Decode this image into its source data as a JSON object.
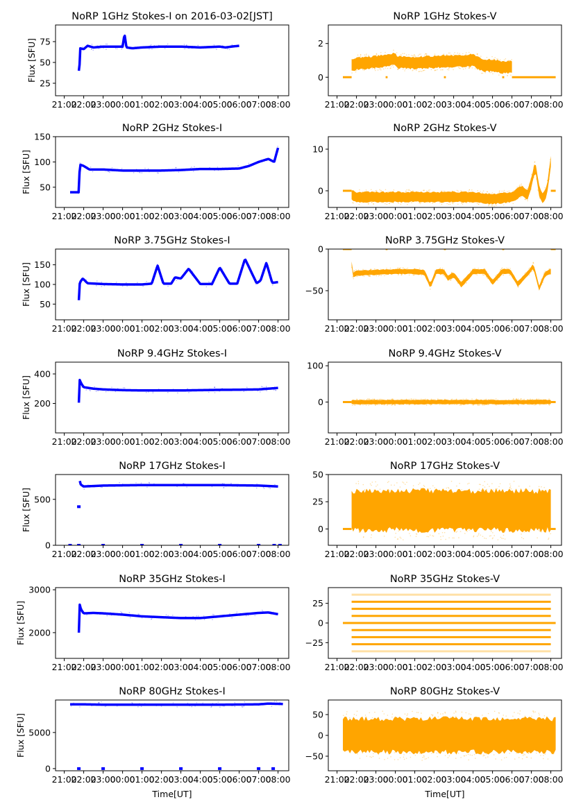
{
  "figure": {
    "xlabel": "Time[UT]",
    "ylabel": "Flux [SFU]",
    "colors": {
      "stokes_i": "#0000ff",
      "stokes_v": "#ffa500"
    }
  },
  "chart_data": [
    {
      "type": "scatter",
      "title": "NoRP 1GHz Stokes-I on 2016-03-02[JST]",
      "ylabel": "Flux [SFU]",
      "xlabel": "",
      "x_ticks": [
        "21:00",
        "22:00",
        "23:00",
        "00:00",
        "01:00",
        "02:00",
        "03:00",
        "04:00",
        "05:00",
        "06:00",
        "07:00",
        "08:00"
      ],
      "y_ticks": [
        25,
        50,
        75
      ],
      "ylim": [
        10,
        95
      ],
      "color": "#0000ff",
      "x_hours": [
        0.75,
        0.8,
        0.8,
        1.0,
        1.2,
        1.5,
        2.0,
        3.0,
        3.1,
        3.2,
        3.5,
        4,
        5,
        6,
        7,
        8,
        8.3,
        8.6,
        9.0
      ],
      "values": [
        40,
        50,
        67,
        66,
        70,
        68,
        69,
        69,
        84,
        68,
        67,
        68,
        69,
        69,
        68,
        69,
        68,
        69,
        70
      ]
    },
    {
      "type": "scatter",
      "title": "NoRP 1GHz Stokes-V",
      "ylabel": "",
      "xlabel": "",
      "x_ticks": [
        "21:00",
        "22:00",
        "23:00",
        "00:00",
        "01:00",
        "02:00",
        "03:00",
        "04:00",
        "05:00",
        "06:00",
        "07:00",
        "08:00"
      ],
      "y_ticks": [
        0,
        2
      ],
      "ylim": [
        -1.1,
        3.1
      ],
      "color": "#ffa500",
      "x_hours": [
        0.75,
        1.0,
        1.5,
        2.0,
        2.5,
        3.0,
        3.1,
        4.0,
        5.0,
        6.0,
        7.0,
        7.5,
        8.0,
        8.5,
        9.0
      ],
      "values": [
        0.7,
        0.8,
        0.85,
        0.9,
        1.0,
        1.1,
        0.9,
        0.85,
        0.9,
        0.95,
        1.0,
        0.7,
        0.7,
        0.6,
        0.6
      ],
      "spread": 0.35,
      "zero_segments": [
        [
          0.3,
          0.75
        ],
        [
          2.5,
          2.6
        ],
        [
          5.5,
          5.6
        ],
        [
          8.5,
          8.6
        ],
        [
          9.0,
          11.25
        ]
      ]
    },
    {
      "type": "scatter",
      "title": "NoRP 2GHz Stokes-I",
      "ylabel": "Flux [SFU]",
      "xlabel": "",
      "x_ticks": [
        "21:00",
        "22:00",
        "23:00",
        "00:00",
        "01:00",
        "02:00",
        "03:00",
        "04:00",
        "05:00",
        "06:00",
        "07:00",
        "08:00"
      ],
      "y_ticks": [
        50,
        100,
        150
      ],
      "ylim": [
        10,
        150
      ],
      "color": "#0000ff",
      "x_hours": [
        0.3,
        0.7,
        0.75,
        0.8,
        1.0,
        1.3,
        2,
        3,
        4,
        5,
        6,
        7,
        8,
        9,
        9.5,
        10.0,
        10.5,
        10.8,
        11.0
      ],
      "values": [
        40,
        40,
        40,
        95,
        92,
        85,
        85,
        83,
        83,
        83,
        84,
        86,
        86,
        87,
        92,
        100,
        106,
        100,
        128
      ]
    },
    {
      "type": "scatter",
      "title": "NoRP 2GHz Stokes-V",
      "ylabel": "",
      "xlabel": "",
      "x_ticks": [
        "21:00",
        "22:00",
        "23:00",
        "00:00",
        "01:00",
        "02:00",
        "03:00",
        "04:00",
        "05:00",
        "06:00",
        "07:00",
        "08:00"
      ],
      "y_ticks": [
        0,
        10
      ],
      "ylim": [
        -4,
        13
      ],
      "color": "#ffa500",
      "x_hours": [
        0.75,
        1,
        2,
        3,
        4,
        5,
        6,
        7,
        8,
        9,
        9.5,
        9.8,
        10.0,
        10.2,
        10.4,
        10.6,
        10.8,
        11.0
      ],
      "values": [
        -1,
        -1.5,
        -1.5,
        -1.5,
        -1.5,
        -1.5,
        -1.5,
        -1.5,
        -2,
        -1.5,
        0,
        -1,
        2,
        6,
        0,
        -2,
        0,
        7
      ],
      "spread": 1.2,
      "zero_segments": [
        [
          0.3,
          0.75
        ],
        [
          11.0,
          11.25
        ]
      ]
    },
    {
      "type": "scatter",
      "title": "NoRP 3.75GHz Stokes-I",
      "ylabel": "Flux [SFU]",
      "xlabel": "",
      "x_ticks": [
        "21:00",
        "22:00",
        "23:00",
        "00:00",
        "01:00",
        "02:00",
        "03:00",
        "04:00",
        "05:00",
        "06:00",
        "07:00",
        "08:00"
      ],
      "y_ticks": [
        50,
        100,
        150
      ],
      "ylim": [
        10,
        190
      ],
      "color": "#0000ff",
      "x_hours": [
        0.75,
        0.8,
        0.95,
        1.2,
        2,
        3,
        4,
        4.5,
        4.8,
        5.1,
        5.5,
        5.7,
        6.0,
        6.4,
        7.0,
        7.6,
        8.0,
        8.5,
        8.9,
        9.3,
        9.9,
        10.1,
        10.4,
        10.7,
        11.0
      ],
      "values": [
        60,
        105,
        115,
        103,
        101,
        100,
        100,
        102,
        148,
        102,
        102,
        118,
        115,
        140,
        101,
        101,
        143,
        102,
        102,
        165,
        103,
        110,
        155,
        104,
        106
      ]
    },
    {
      "type": "scatter",
      "title": "NoRP 3.75GHz Stokes-V",
      "ylabel": "",
      "xlabel": "",
      "x_ticks": [
        "21:00",
        "22:00",
        "23:00",
        "00:00",
        "01:00",
        "02:00",
        "03:00",
        "04:00",
        "05:00",
        "06:00",
        "07:00",
        "08:00"
      ],
      "y_ticks": [
        0,
        -50
      ],
      "ylim": [
        -85,
        0
      ],
      "color": "#ffa500",
      "x_hours": [
        0.75,
        0.8,
        0.95,
        2,
        3,
        4,
        4.5,
        4.8,
        5.1,
        5.5,
        5.7,
        6.0,
        6.4,
        7.0,
        7.6,
        8.0,
        8.5,
        8.9,
        9.3,
        9.9,
        10.1,
        10.4,
        10.7,
        11.0
      ],
      "values": [
        -18,
        -32,
        -29,
        -28,
        -27,
        -27,
        -28,
        -44,
        -27,
        -27,
        -35,
        -31,
        -43,
        -27,
        -27,
        -40,
        -27,
        -27,
        -42,
        -27,
        -20,
        -47,
        -30,
        -27
      ],
      "spread": 3,
      "zero_segments": [
        [
          0.3,
          0.75
        ],
        [
          2.5,
          2.6
        ],
        [
          5.5,
          5.6
        ],
        [
          8.5,
          8.6
        ],
        [
          11.0,
          11.25
        ]
      ]
    },
    {
      "type": "scatter",
      "title": "NoRP 9.4GHz Stokes-I",
      "ylabel": "Flux [SFU]",
      "xlabel": "",
      "x_ticks": [
        "21:00",
        "22:00",
        "23:00",
        "00:00",
        "01:00",
        "02:00",
        "03:00",
        "04:00",
        "05:00",
        "06:00",
        "07:00",
        "08:00"
      ],
      "y_ticks": [
        200,
        400
      ],
      "ylim": [
        0,
        480
      ],
      "color": "#0000ff",
      "x_hours": [
        0.75,
        0.8,
        0.85,
        1.0,
        1.5,
        2,
        3,
        4,
        5,
        6,
        7,
        8,
        9,
        10,
        10.5,
        11.0
      ],
      "values": [
        205,
        370,
        340,
        310,
        300,
        295,
        290,
        288,
        288,
        288,
        290,
        292,
        293,
        295,
        300,
        305
      ]
    },
    {
      "type": "scatter",
      "title": "NoRP 9.4GHz Stokes-V",
      "ylabel": "",
      "xlabel": "",
      "x_ticks": [
        "21:00",
        "22:00",
        "23:00",
        "00:00",
        "01:00",
        "02:00",
        "03:00",
        "04:00",
        "05:00",
        "06:00",
        "07:00",
        "08:00"
      ],
      "y_ticks": [
        0,
        100
      ],
      "ylim": [
        -85,
        110
      ],
      "color": "#ffa500",
      "x_hours": [
        0.75,
        11.0
      ],
      "values": [
        0,
        0
      ],
      "spread": 6,
      "zero_segments": [
        [
          0.3,
          0.75
        ],
        [
          11.0,
          11.25
        ]
      ]
    },
    {
      "type": "scatter",
      "title": "NoRP 17GHz Stokes-I",
      "ylabel": "Flux [SFU]",
      "xlabel": "",
      "x_ticks": [
        "21:00",
        "22:00",
        "23:00",
        "00:00",
        "01:00",
        "02:00",
        "03:00",
        "04:00",
        "05:00",
        "06:00",
        "07:00",
        "08:00"
      ],
      "y_ticks": [
        0,
        500
      ],
      "ylim": [
        0,
        770
      ],
      "color": "#0000ff",
      "x_hours": [
        0.8,
        0.85,
        1.0,
        2,
        4,
        6,
        8,
        10,
        11.0
      ],
      "values": [
        700,
        660,
        640,
        650,
        655,
        655,
        655,
        650,
        640
      ],
      "outliers": [
        [
          0.75,
          420
        ],
        [
          0.3,
          0
        ],
        [
          0.75,
          0
        ],
        [
          2,
          0
        ],
        [
          4,
          0
        ],
        [
          6,
          0
        ],
        [
          8,
          0
        ],
        [
          10,
          0
        ],
        [
          10.8,
          0
        ],
        [
          11.1,
          0
        ]
      ]
    },
    {
      "type": "scatter",
      "title": "NoRP 17GHz Stokes-V",
      "ylabel": "",
      "xlabel": "",
      "x_ticks": [
        "21:00",
        "22:00",
        "23:00",
        "00:00",
        "01:00",
        "02:00",
        "03:00",
        "04:00",
        "05:00",
        "06:00",
        "07:00",
        "08:00"
      ],
      "y_ticks": [
        0,
        25,
        50
      ],
      "ylim": [
        -15,
        50
      ],
      "color": "#ffa500",
      "x_hours": [
        0.75,
        11.0
      ],
      "values": [
        17,
        17
      ],
      "spread": 18,
      "zero_segments": [
        [
          0.3,
          0.75
        ],
        [
          11.0,
          11.25
        ]
      ]
    },
    {
      "type": "scatter",
      "title": "NoRP 35GHz Stokes-I",
      "ylabel": "Flux [SFU]",
      "xlabel": "",
      "x_ticks": [
        "21:00",
        "22:00",
        "23:00",
        "00:00",
        "01:00",
        "02:00",
        "03:00",
        "04:00",
        "05:00",
        "06:00",
        "07:00",
        "08:00"
      ],
      "y_ticks": [
        2000,
        3000
      ],
      "ylim": [
        1400,
        3050
      ],
      "color": "#0000ff",
      "x_hours": [
        0.75,
        0.8,
        0.85,
        1.0,
        1.5,
        2,
        3,
        4,
        5,
        6,
        7,
        8,
        9,
        10,
        10.5,
        11.0
      ],
      "values": [
        2000,
        2700,
        2550,
        2450,
        2460,
        2450,
        2420,
        2380,
        2360,
        2340,
        2340,
        2380,
        2420,
        2460,
        2470,
        2430
      ]
    },
    {
      "type": "scatter",
      "title": "NoRP 35GHz Stokes-V",
      "ylabel": "",
      "xlabel": "",
      "x_ticks": [
        "21:00",
        "22:00",
        "23:00",
        "00:00",
        "01:00",
        "02:00",
        "03:00",
        "04:00",
        "05:00",
        "06:00",
        "07:00",
        "08:00"
      ],
      "y_ticks": [
        -25,
        0,
        25
      ],
      "ylim": [
        -45,
        45
      ],
      "color": "#ffa500",
      "levels": [
        -36,
        -27,
        -18,
        -9,
        0,
        9,
        18,
        27,
        36
      ],
      "x_range": [
        0.75,
        11.0
      ],
      "zero_segments": [
        [
          0.3,
          11.25
        ]
      ]
    },
    {
      "type": "scatter",
      "title": "NoRP 80GHz Stokes-I",
      "ylabel": "Flux [SFU]",
      "xlabel": "Time[UT]",
      "x_ticks": [
        "21:00",
        "22:00",
        "23:00",
        "00:00",
        "01:00",
        "02:00",
        "03:00",
        "04:00",
        "05:00",
        "06:00",
        "07:00",
        "08:00"
      ],
      "y_ticks": [
        0,
        5000
      ],
      "ylim": [
        -300,
        9500
      ],
      "color": "#0000ff",
      "x_hours": [
        0.3,
        1,
        2,
        4,
        6,
        8,
        10,
        10.5,
        11.25
      ],
      "values": [
        8900,
        8900,
        8850,
        8850,
        8850,
        8850,
        8900,
        9000,
        8950
      ],
      "outliers": [
        [
          0.75,
          0
        ],
        [
          2,
          0
        ],
        [
          4,
          0
        ],
        [
          6,
          0
        ],
        [
          8,
          0
        ],
        [
          10,
          0
        ],
        [
          10.75,
          0
        ]
      ]
    },
    {
      "type": "scatter",
      "title": "NoRP 80GHz Stokes-V",
      "ylabel": "",
      "xlabel": "Time[UT]",
      "x_ticks": [
        "21:00",
        "22:00",
        "23:00",
        "00:00",
        "01:00",
        "02:00",
        "03:00",
        "04:00",
        "05:00",
        "06:00",
        "07:00",
        "08:00"
      ],
      "y_ticks": [
        -50,
        0,
        50
      ],
      "ylim": [
        -85,
        85
      ],
      "color": "#ffa500",
      "x_hours": [
        0.3,
        11.25
      ],
      "values": [
        0,
        0
      ],
      "spread": 40
    }
  ]
}
